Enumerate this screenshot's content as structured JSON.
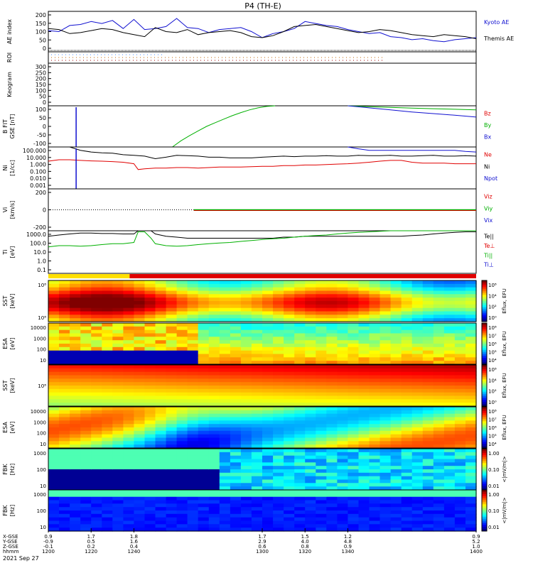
{
  "title": "P4 (TH-E)",
  "colors": {
    "black": "#000000",
    "red": "#e00000",
    "green": "#00b000",
    "blue": "#1010d0",
    "cyan": "#00c8c8"
  },
  "chart_data": {
    "type": "line",
    "title": "P4 (TH-E)",
    "date_label": "2021 Sep 27",
    "time_ticks": [
      "1200",
      "1220",
      "1240",
      "1300",
      "1320",
      "1340",
      "1400"
    ],
    "x_rows": [
      {
        "label": "X-GSE",
        "values": [
          "0.9",
          "1.7",
          "1.8",
          "1.7",
          "1.5",
          "1.2",
          "0.9"
        ]
      },
      {
        "label": "Y-GSE",
        "values": [
          "-0.9",
          "0.5",
          "1.6",
          "2.9",
          "4.0",
          "4.8",
          "5.2"
        ]
      },
      {
        "label": "Z-GSE",
        "values": [
          "-0.1",
          "0.2",
          "0.4",
          "0.6",
          "0.8",
          "0.9",
          "1.0"
        ]
      },
      {
        "label": "hhmm",
        "values": [
          "1200",
          "1220",
          "1240",
          "1300",
          "1320",
          "1340",
          "1400"
        ]
      }
    ],
    "panels": [
      {
        "id": "ae",
        "ylabel": "AE index",
        "ticks": [
          "200",
          "150",
          "100",
          "50",
          "0"
        ],
        "legend": [
          {
            "text": "Kyoto AE",
            "color": "#1010d0"
          },
          {
            "text": "Themis AE",
            "color": "#000000"
          }
        ],
        "series": [
          {
            "name": "Kyoto AE",
            "color": "#1010d0",
            "x": [
              1200,
              1205,
              1210,
              1215,
              1220,
              1225,
              1230,
              1235,
              1240,
              1245,
              1250,
              1255,
              1260,
              1265,
              1270,
              1275,
              1280,
              1285,
              1290,
              1295,
              1300,
              1305,
              1310,
              1315,
              1320,
              1325,
              1330,
              1335,
              1340,
              1345,
              1350,
              1355,
              1360,
              1365,
              1370,
              1375,
              1380,
              1385,
              1390,
              1395,
              1400
            ],
            "y": [
              105,
              100,
              130,
              135,
              150,
              140,
              155,
              115,
              160,
              110,
              115,
              125,
              165,
              120,
              115,
              95,
              110,
              115,
              120,
              100,
              70,
              90,
              100,
              115,
              150,
              140,
              130,
              125,
              110,
              100,
              90,
              95,
              75,
              70,
              60,
              65,
              55,
              50,
              60,
              65,
              70
            ]
          },
          {
            "name": "Themis AE",
            "color": "#000000",
            "x": [
              1200,
              1205,
              1210,
              1215,
              1220,
              1225,
              1230,
              1235,
              1240,
              1245,
              1250,
              1255,
              1260,
              1265,
              1270,
              1275,
              1280,
              1285,
              1290,
              1295,
              1300,
              1305,
              1310,
              1315,
              1320,
              1325,
              1330,
              1335,
              1340,
              1345,
              1350,
              1355,
              1360,
              1365,
              1370,
              1375,
              1380,
              1385,
              1390,
              1395,
              1400
            ],
            "y": [
              115,
              110,
              90,
              95,
              105,
              115,
              110,
              95,
              85,
              75,
              120,
              100,
              95,
              110,
              85,
              95,
              100,
              105,
              95,
              75,
              70,
              80,
              100,
              125,
              130,
              135,
              125,
              115,
              105,
              95,
              100,
              110,
              105,
              95,
              85,
              80,
              75,
              85,
              80,
              75,
              65
            ]
          }
        ]
      },
      {
        "id": "roi",
        "ylabel": "ROI",
        "ticks": []
      },
      {
        "id": "keo",
        "ylabel": "Keogram",
        "ticks": [
          "300",
          "250",
          "200",
          "150",
          "100",
          "50",
          "0"
        ]
      },
      {
        "id": "bfit",
        "ylabel": "B FIT",
        "sublabel": "GSE [nT]",
        "ticks": [
          "100",
          "50",
          "0",
          "-50",
          "-100"
        ],
        "legend": [
          {
            "text": "Bz",
            "color": "#e00000"
          },
          {
            "text": "By",
            "color": "#00b000"
          },
          {
            "text": "Bx",
            "color": "#1010d0"
          }
        ],
        "series": [
          {
            "name": "By",
            "color": "#00b000",
            "x": [
              1258,
              1262,
              1266,
              1270,
              1274,
              1278,
              1282,
              1286,
              1290,
              1294,
              1298,
              1302,
              1306
            ],
            "y": [
              -100,
              -70,
              -45,
              -22,
              0,
              18,
              35,
              52,
              67,
              80,
              90,
              97,
              100
            ]
          },
          {
            "name": "By",
            "color": "#00b000",
            "x": [
              1340,
              1350,
              1360,
              1370,
              1380,
              1390,
              1400
            ],
            "y": [
              100,
              96,
              92,
              89,
              86,
              83,
              80
            ]
          },
          {
            "name": "Bx",
            "color": "#1010d0",
            "x": [
              1340,
              1350,
              1360,
              1370,
              1380,
              1390,
              1400
            ],
            "y": [
              100,
              90,
              80,
              70,
              62,
              54,
              45
            ]
          }
        ]
      },
      {
        "id": "ni",
        "ylabel": "Ni",
        "sublabel": "[1/cc]",
        "ticks": [
          "100.000",
          "10.000",
          "1.000",
          "0.100",
          "0.010",
          "0.001"
        ],
        "log": true,
        "legend": [
          {
            "text": "Ne",
            "color": "#e00000"
          },
          {
            "text": "Ni",
            "color": "#000000"
          },
          {
            "text": "Npot",
            "color": "#1010d0"
          }
        ],
        "series": [
          {
            "name": "Ni",
            "color": "#000000",
            "x": [
              1210,
              1215,
              1220,
              1225,
              1230,
              1235,
              1240,
              1245,
              1250,
              1255,
              1260,
              1265,
              1270,
              1275,
              1280,
              1285,
              1290,
              1295,
              1300,
              1305,
              1310,
              1315,
              1320,
              1325,
              1330,
              1335,
              1340,
              1345,
              1350,
              1355,
              1360,
              1365,
              1370,
              1375,
              1380,
              1385,
              1390,
              1395,
              1400
            ],
            "y": [
              120,
              40,
              25,
              20,
              18,
              12,
              10,
              8,
              4,
              6,
              10,
              9,
              8,
              6,
              6,
              5,
              5,
              5,
              6,
              7,
              8,
              7,
              8,
              8,
              9,
              8,
              8,
              10,
              9,
              9,
              10,
              8,
              8,
              9,
              10,
              8,
              8,
              9,
              8
            ]
          },
          {
            "name": "Ne",
            "color": "#e00000",
            "x": [
              1200,
              1205,
              1210,
              1215,
              1220,
              1225,
              1230,
              1235,
              1240,
              1242,
              1245,
              1250,
              1255,
              1260,
              1265,
              1270,
              1275,
              1280,
              1285,
              1290,
              1295,
              1300,
              1305,
              1310,
              1315,
              1320,
              1325,
              1330,
              1335,
              1340,
              1345,
              1350,
              1355,
              1360,
              1365,
              1370,
              1375,
              1380,
              1385,
              1390,
              1395,
              1400
            ],
            "y": [
              2,
              3,
              3,
              2.5,
              2.2,
              2,
              1.8,
              1.5,
              1,
              0.2,
              0.25,
              0.3,
              0.3,
              0.35,
              0.35,
              0.3,
              0.35,
              0.4,
              0.4,
              0.4,
              0.45,
              0.5,
              0.5,
              0.6,
              0.6,
              0.7,
              0.7,
              0.8,
              0.9,
              1,
              1.2,
              1.5,
              2,
              2.5,
              2.5,
              1.5,
              1.2,
              1.2,
              1.2,
              1,
              1,
              1
            ]
          },
          {
            "name": "Npot",
            "color": "#1010d0",
            "x": [
              1340,
              1345,
              1350,
              1355,
              1360,
              1365,
              1370,
              1375,
              1380,
              1385,
              1390,
              1395,
              1400
            ],
            "y": [
              100,
              60,
              40,
              40,
              40,
              40,
              40,
              40,
              40,
              40,
              40,
              30,
              25
            ]
          }
        ]
      },
      {
        "id": "vi",
        "ylabel": "Vi",
        "sublabel": "[km/s]",
        "ticks": [
          "200",
          "0",
          "-200"
        ],
        "legend": [
          {
            "text": "Viz",
            "color": "#e00000"
          },
          {
            "text": "Viy",
            "color": "#00b000"
          },
          {
            "text": "Vix",
            "color": "#1010d0"
          }
        ]
      },
      {
        "id": "ti",
        "ylabel": "Ti",
        "sublabel": "[eV]",
        "ticks": [
          "1000.0",
          "100.0",
          "10.0",
          "1.0",
          "0.1"
        ],
        "log": true,
        "legend": [
          {
            "text": "Te||",
            "color": "#000000"
          },
          {
            "text": "Te⊥",
            "color": "#e00000"
          },
          {
            "text": "Ti||",
            "color": "#00b000"
          },
          {
            "text": "Ti⊥",
            "color": "#1010d0"
          }
        ],
        "series": [
          {
            "name": "Te||",
            "color": "#000000",
            "x": [
              1200,
              1205,
              1210,
              1215,
              1220,
              1225,
              1230,
              1235,
              1240,
              1242,
              1245,
              1248,
              1250,
              1255,
              1260,
              1265,
              1270,
              1275,
              1280,
              1285,
              1290,
              1295,
              1300,
              1305,
              1310,
              1315,
              1320,
              1325,
              1330,
              1335,
              1340,
              1345,
              1350,
              1355,
              1360,
              1365,
              1370,
              1375,
              1380,
              1385,
              1390,
              1395,
              1400
            ],
            "y": [
              300,
              400,
              500,
              600,
              600,
              550,
              550,
              500,
              500,
              2000,
              2000,
              1000,
              500,
              300,
              250,
              200,
              200,
              200,
              200,
              200,
              200,
              200,
              200,
              200,
              250,
              250,
              300,
              300,
              300,
              300,
              300,
              300,
              300,
              300,
              300,
              300,
              350,
              400,
              500,
              600,
              700,
              800,
              800
            ]
          },
          {
            "name": "Ti||",
            "color": "#00b000",
            "x": [
              1200,
              1205,
              1210,
              1215,
              1220,
              1225,
              1230,
              1235,
              1240,
              1242,
              1245,
              1248,
              1250,
              1255,
              1260,
              1265,
              1270,
              1275,
              1280,
              1285,
              1290,
              1295,
              1300,
              1305,
              1310,
              1315,
              1320,
              1325,
              1330,
              1335,
              1340,
              1345,
              1350,
              1355,
              1360,
              1365,
              1370,
              1375,
              1380,
              1385,
              1390,
              1395,
              1400
            ],
            "y": [
              30,
              40,
              40,
              35,
              40,
              50,
              60,
              60,
              80,
              800,
              800,
              200,
              60,
              40,
              35,
              40,
              50,
              60,
              70,
              80,
              100,
              120,
              150,
              180,
              200,
              250,
              300,
              350,
              400,
              500,
              600,
              700,
              800,
              900,
              1000,
              1100,
              1200,
              1300,
              1400,
              1500,
              1600,
              1800,
              2000
            ]
          }
        ]
      }
    ],
    "spectrograms": [
      {
        "id": "sst_ion",
        "ylabel": "SST",
        "sublabel": "[keV]",
        "ticks": [
          "10⁸",
          "10⁸"
        ],
        "cb_label": "Eflux, EFU",
        "cb_ticks": [
          "10⁸",
          "10⁴",
          "10²",
          "10⁰"
        ]
      },
      {
        "id": "esa_ion",
        "ylabel": "ESA",
        "sublabel": "[eV]",
        "ticks": [
          "10000",
          "1000",
          "100",
          "10"
        ],
        "cb_label": "Eflux, EFU",
        "cb_ticks": [
          "10⁸",
          "10⁷",
          "10⁶",
          "10⁵",
          "10⁴"
        ]
      },
      {
        "id": "sst_elec",
        "ylabel": "SST",
        "sublabel": "[keV]",
        "ticks": [
          "10⁸"
        ],
        "cb_label": "Eflux, EFU",
        "cb_ticks": [
          "10⁸",
          "10⁴",
          "10²",
          "10⁰"
        ]
      },
      {
        "id": "esa_elec",
        "ylabel": "ESA",
        "sublabel": "[eV]",
        "ticks": [
          "10000",
          "1000",
          "100",
          "10"
        ],
        "cb_label": "Eflux, EFU",
        "cb_ticks": [
          "10⁸",
          "10⁷",
          "10⁶",
          "10⁵",
          "10⁴"
        ]
      },
      {
        "id": "fbk_e",
        "ylabel": "FBK",
        "sublabel": "[Hz]",
        "ticks": [
          "1000",
          "100",
          "10"
        ],
        "cb_label": "<|mV/m|>",
        "cb_ticks": [
          "1.00",
          "0.10",
          "0.01"
        ]
      },
      {
        "id": "fbk_b",
        "ylabel": "FBK",
        "sublabel": "[Hz]",
        "ticks": [
          "1000",
          "100",
          "10"
        ],
        "cb_label": "<|mV/m|>",
        "cb_ticks": [
          "1.00",
          "0.10",
          "0.01"
        ]
      }
    ]
  }
}
